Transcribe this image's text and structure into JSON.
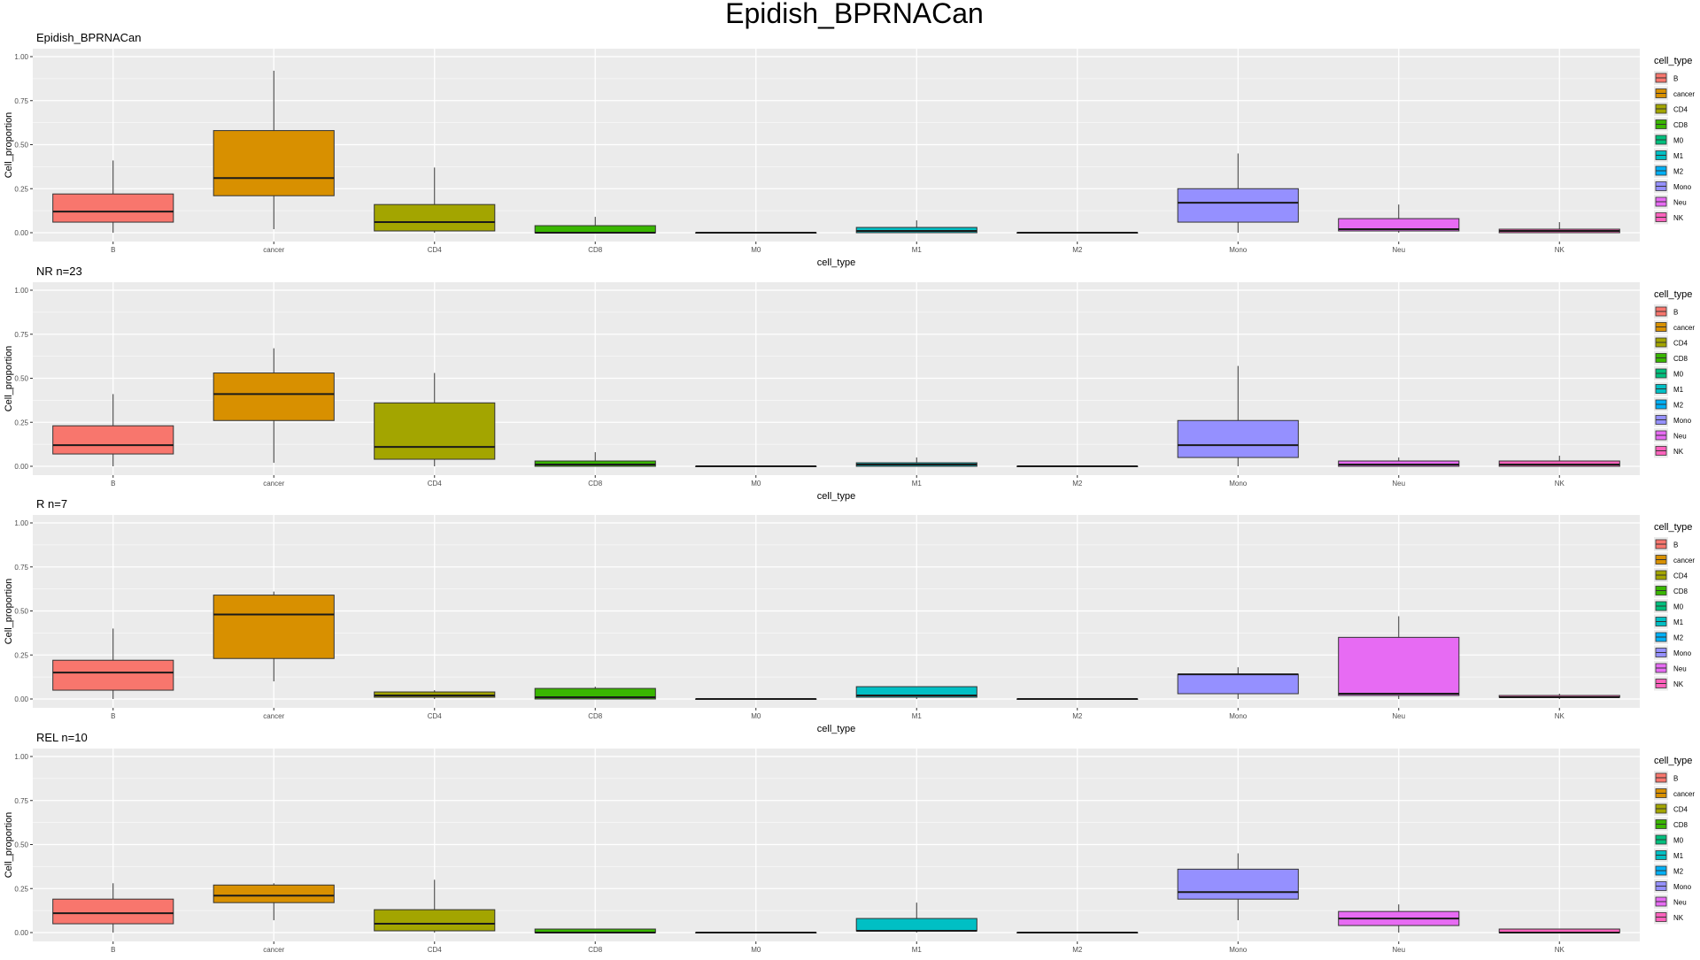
{
  "figure": {
    "title": "Epidish_BPRNACan"
  },
  "chart_data": [
    {
      "type": "boxplot",
      "title": "Epidish_BPRNACan",
      "xlabel": "cell_type",
      "ylabel": "Cell_proportion",
      "ylim": [
        0,
        1
      ],
      "yticks": [
        "0.00",
        "0.25",
        "0.50",
        "0.75",
        "1.00"
      ],
      "categories": [
        "B",
        "cancer",
        "CD4",
        "CD8",
        "M0",
        "M1",
        "M2",
        "Mono",
        "Neu",
        "NK"
      ],
      "boxes": [
        {
          "category": "B",
          "whisker_low": 0.0,
          "q1": 0.06,
          "median": 0.12,
          "q3": 0.22,
          "whisker_high": 0.41
        },
        {
          "category": "cancer",
          "whisker_low": 0.02,
          "q1": 0.21,
          "median": 0.31,
          "q3": 0.58,
          "whisker_high": 0.92
        },
        {
          "category": "CD4",
          "whisker_low": 0.0,
          "q1": 0.01,
          "median": 0.06,
          "q3": 0.16,
          "whisker_high": 0.37
        },
        {
          "category": "CD8",
          "whisker_low": 0.0,
          "q1": 0.0,
          "median": 0.0,
          "q3": 0.04,
          "whisker_high": 0.09
        },
        {
          "category": "M0",
          "whisker_low": 0.0,
          "q1": 0.0,
          "median": 0.0,
          "q3": 0.0,
          "whisker_high": 0.0
        },
        {
          "category": "M1",
          "whisker_low": 0.0,
          "q1": 0.0,
          "median": 0.01,
          "q3": 0.03,
          "whisker_high": 0.07
        },
        {
          "category": "M2",
          "whisker_low": 0.0,
          "q1": 0.0,
          "median": 0.0,
          "q3": 0.0,
          "whisker_high": 0.0
        },
        {
          "category": "Mono",
          "whisker_low": 0.0,
          "q1": 0.06,
          "median": 0.17,
          "q3": 0.25,
          "whisker_high": 0.45
        },
        {
          "category": "Neu",
          "whisker_low": 0.0,
          "q1": 0.01,
          "median": 0.02,
          "q3": 0.08,
          "whisker_high": 0.16
        },
        {
          "category": "NK",
          "whisker_low": 0.0,
          "q1": 0.0,
          "median": 0.01,
          "q3": 0.02,
          "whisker_high": 0.06
        }
      ],
      "legend": {
        "title": "cell_type",
        "entries": [
          "B",
          "cancer",
          "CD4",
          "CD8",
          "M0",
          "M1",
          "M2",
          "Mono",
          "Neu",
          "NK"
        ],
        "placement": "right"
      }
    },
    {
      "type": "boxplot",
      "title": "NR n=23",
      "xlabel": "cell_type",
      "ylabel": "Cell_proportion",
      "ylim": [
        0,
        1
      ],
      "yticks": [
        "0.00",
        "0.25",
        "0.50",
        "0.75",
        "1.00"
      ],
      "categories": [
        "B",
        "cancer",
        "CD4",
        "CD8",
        "M0",
        "M1",
        "M2",
        "Mono",
        "Neu",
        "NK"
      ],
      "boxes": [
        {
          "category": "B",
          "whisker_low": 0.0,
          "q1": 0.07,
          "median": 0.12,
          "q3": 0.23,
          "whisker_high": 0.41
        },
        {
          "category": "cancer",
          "whisker_low": 0.02,
          "q1": 0.26,
          "median": 0.41,
          "q3": 0.53,
          "whisker_high": 0.67
        },
        {
          "category": "CD4",
          "whisker_low": 0.0,
          "q1": 0.04,
          "median": 0.11,
          "q3": 0.36,
          "whisker_high": 0.53
        },
        {
          "category": "CD8",
          "whisker_low": 0.0,
          "q1": 0.0,
          "median": 0.01,
          "q3": 0.03,
          "whisker_high": 0.08
        },
        {
          "category": "M0",
          "whisker_low": 0.0,
          "q1": 0.0,
          "median": 0.0,
          "q3": 0.0,
          "whisker_high": 0.0
        },
        {
          "category": "M1",
          "whisker_low": 0.0,
          "q1": 0.0,
          "median": 0.01,
          "q3": 0.02,
          "whisker_high": 0.05
        },
        {
          "category": "M2",
          "whisker_low": 0.0,
          "q1": 0.0,
          "median": 0.0,
          "q3": 0.0,
          "whisker_high": 0.0
        },
        {
          "category": "Mono",
          "whisker_low": 0.0,
          "q1": 0.05,
          "median": 0.12,
          "q3": 0.26,
          "whisker_high": 0.57
        },
        {
          "category": "Neu",
          "whisker_low": 0.0,
          "q1": 0.0,
          "median": 0.01,
          "q3": 0.03,
          "whisker_high": 0.05
        },
        {
          "category": "NK",
          "whisker_low": 0.0,
          "q1": 0.0,
          "median": 0.01,
          "q3": 0.03,
          "whisker_high": 0.06
        }
      ],
      "legend": {
        "title": "cell_type",
        "entries": [
          "B",
          "cancer",
          "CD4",
          "CD8",
          "M0",
          "M1",
          "M2",
          "Mono",
          "Neu",
          "NK"
        ],
        "placement": "right"
      }
    },
    {
      "type": "boxplot",
      "title": "R n=7",
      "xlabel": "cell_type",
      "ylabel": "Cell_proportion",
      "ylim": [
        0,
        1
      ],
      "yticks": [
        "0.00",
        "0.25",
        "0.50",
        "0.75",
        "1.00"
      ],
      "categories": [
        "B",
        "cancer",
        "CD4",
        "CD8",
        "M0",
        "M1",
        "M2",
        "Mono",
        "Neu",
        "NK"
      ],
      "boxes": [
        {
          "category": "B",
          "whisker_low": 0.0,
          "q1": 0.05,
          "median": 0.15,
          "q3": 0.22,
          "whisker_high": 0.4
        },
        {
          "category": "cancer",
          "whisker_low": 0.1,
          "q1": 0.23,
          "median": 0.48,
          "q3": 0.59,
          "whisker_high": 0.61
        },
        {
          "category": "CD4",
          "whisker_low": 0.0,
          "q1": 0.01,
          "median": 0.02,
          "q3": 0.04,
          "whisker_high": 0.05
        },
        {
          "category": "CD8",
          "whisker_low": 0.0,
          "q1": 0.0,
          "median": 0.01,
          "q3": 0.06,
          "whisker_high": 0.07
        },
        {
          "category": "M0",
          "whisker_low": 0.0,
          "q1": 0.0,
          "median": 0.0,
          "q3": 0.0,
          "whisker_high": 0.0
        },
        {
          "category": "M1",
          "whisker_low": 0.0,
          "q1": 0.01,
          "median": 0.02,
          "q3": 0.07,
          "whisker_high": 0.07
        },
        {
          "category": "M2",
          "whisker_low": 0.0,
          "q1": 0.0,
          "median": 0.0,
          "q3": 0.0,
          "whisker_high": 0.0
        },
        {
          "category": "Mono",
          "whisker_low": 0.0,
          "q1": 0.03,
          "median": 0.14,
          "q3": 0.14,
          "whisker_high": 0.18
        },
        {
          "category": "Neu",
          "whisker_low": 0.0,
          "q1": 0.02,
          "median": 0.03,
          "q3": 0.35,
          "whisker_high": 0.47
        },
        {
          "category": "NK",
          "whisker_low": 0.0,
          "q1": 0.01,
          "median": 0.01,
          "q3": 0.02,
          "whisker_high": 0.03
        }
      ],
      "legend": {
        "title": "cell_type",
        "entries": [
          "B",
          "cancer",
          "CD4",
          "CD8",
          "M0",
          "M1",
          "M2",
          "Mono",
          "Neu",
          "NK"
        ],
        "placement": "right"
      }
    },
    {
      "type": "boxplot",
      "title": "REL n=10",
      "xlabel": "cell_type",
      "ylabel": "Cell_proportion",
      "ylim": [
        0,
        1
      ],
      "yticks": [
        "0.00",
        "0.25",
        "0.50",
        "0.75",
        "1.00"
      ],
      "categories": [
        "B",
        "cancer",
        "CD4",
        "CD8",
        "M0",
        "M1",
        "M2",
        "Mono",
        "Neu",
        "NK"
      ],
      "boxes": [
        {
          "category": "B",
          "whisker_low": 0.0,
          "q1": 0.05,
          "median": 0.11,
          "q3": 0.19,
          "whisker_high": 0.28
        },
        {
          "category": "cancer",
          "whisker_low": 0.07,
          "q1": 0.17,
          "median": 0.21,
          "q3": 0.27,
          "whisker_high": 0.28
        },
        {
          "category": "CD4",
          "whisker_low": 0.0,
          "q1": 0.01,
          "median": 0.05,
          "q3": 0.13,
          "whisker_high": 0.3
        },
        {
          "category": "CD8",
          "whisker_low": 0.0,
          "q1": 0.0,
          "median": 0.0,
          "q3": 0.02,
          "whisker_high": 0.02
        },
        {
          "category": "M0",
          "whisker_low": 0.0,
          "q1": 0.0,
          "median": 0.0,
          "q3": 0.0,
          "whisker_high": 0.0
        },
        {
          "category": "M1",
          "whisker_low": 0.0,
          "q1": 0.01,
          "median": 0.01,
          "q3": 0.08,
          "whisker_high": 0.17
        },
        {
          "category": "M2",
          "whisker_low": 0.0,
          "q1": 0.0,
          "median": 0.0,
          "q3": 0.0,
          "whisker_high": 0.0
        },
        {
          "category": "Mono",
          "whisker_low": 0.07,
          "q1": 0.19,
          "median": 0.23,
          "q3": 0.36,
          "whisker_high": 0.45
        },
        {
          "category": "Neu",
          "whisker_low": 0.0,
          "q1": 0.04,
          "median": 0.08,
          "q3": 0.12,
          "whisker_high": 0.16
        },
        {
          "category": "NK",
          "whisker_low": 0.0,
          "q1": 0.0,
          "median": 0.0,
          "q3": 0.02,
          "whisker_high": 0.02
        }
      ],
      "legend": {
        "title": "cell_type",
        "entries": [
          "B",
          "cancer",
          "CD4",
          "CD8",
          "M0",
          "M1",
          "M2",
          "Mono",
          "Neu",
          "NK"
        ],
        "placement": "right"
      }
    }
  ],
  "colors": {
    "B": "#F8766D",
    "cancer": "#D89000",
    "CD4": "#A3A500",
    "CD8": "#39B600",
    "M0": "#00BF7D",
    "M1": "#00BFC4",
    "M2": "#00B0F6",
    "Mono": "#9590FF",
    "Neu": "#E76BF3",
    "NK": "#FF62BC",
    "panel_bg": "#EBEBEB",
    "grid": "#FFFFFF"
  }
}
